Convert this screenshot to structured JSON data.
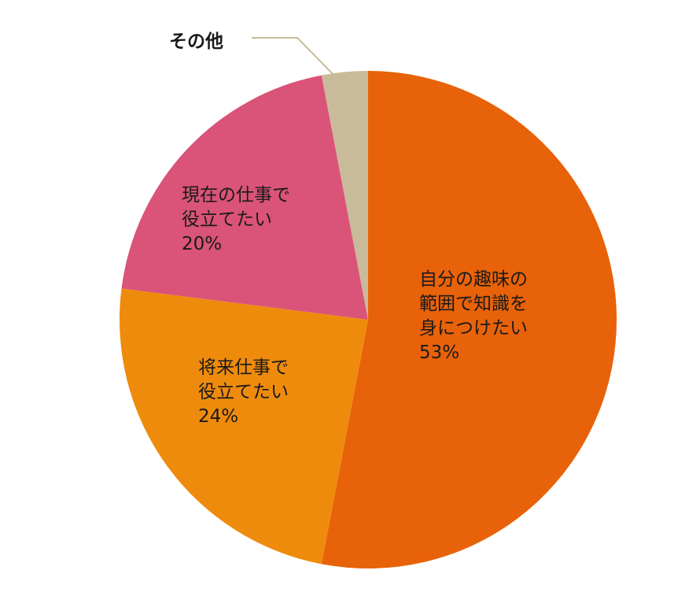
{
  "chart_data": {
    "type": "pie",
    "start_angle": "12 o'clock",
    "direction": "clockwise",
    "slices": [
      {
        "label_lines": [
          "自分の趣味の",
          "範囲で知識を",
          "身につけたい"
        ],
        "percent_text": "53%",
        "value": 53,
        "color": "#E8620A"
      },
      {
        "label_lines": [
          "将来仕事で",
          "役立てたい"
        ],
        "percent_text": "24%",
        "value": 24,
        "color": "#EF8B0C"
      },
      {
        "label_lines": [
          "現在の仕事で",
          "役立てたい"
        ],
        "percent_text": "20%",
        "value": 20,
        "color": "#DA5379"
      },
      {
        "label_lines": [
          "その他"
        ],
        "percent_text": "",
        "value": 3,
        "color": "#C9BB9A"
      }
    ],
    "leader_line_color": "#C9BB9A"
  }
}
